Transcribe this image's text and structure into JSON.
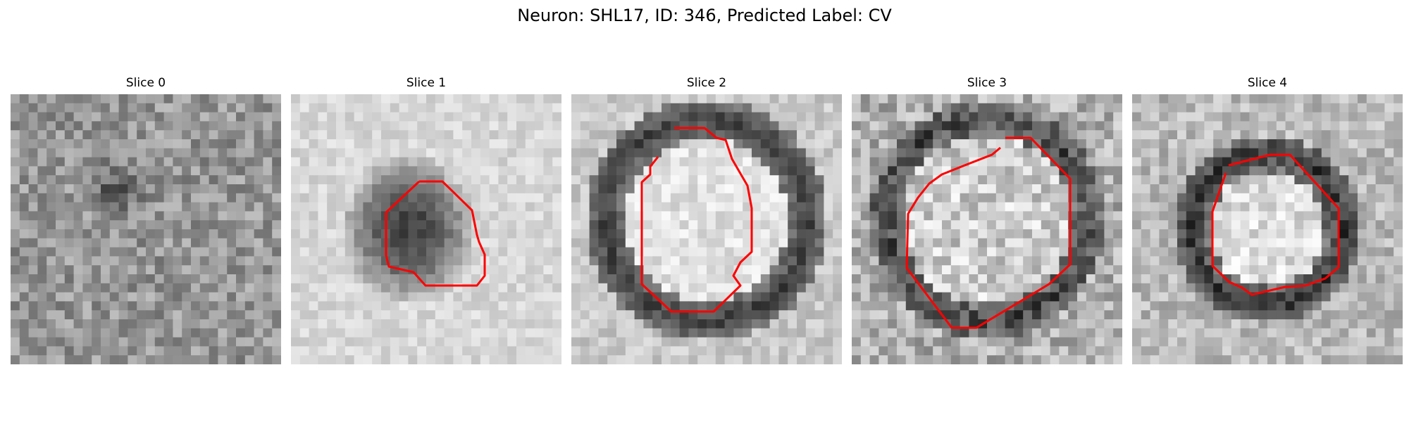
{
  "figure": {
    "title": "Neuron: SHL17, ID: 346, Predicted Label: CV",
    "contour_color": "#ff0000",
    "colormap": "grayscale",
    "panels": [
      {
        "title": "Slice 0",
        "image": "noisy-gray-texture-dark-central-blob",
        "contour": false
      },
      {
        "title": "Slice 1",
        "image": "dark-irregular-blob-light-background",
        "contour": true
      },
      {
        "title": "Slice 2",
        "image": "bright-disc-thick-dark-ring",
        "contour": true
      },
      {
        "title": "Slice 3",
        "image": "bright-disc-dark-ring-textured",
        "contour": true
      },
      {
        "title": "Slice 4",
        "image": "small-bright-disc-dark-ring",
        "contour": true
      }
    ]
  }
}
